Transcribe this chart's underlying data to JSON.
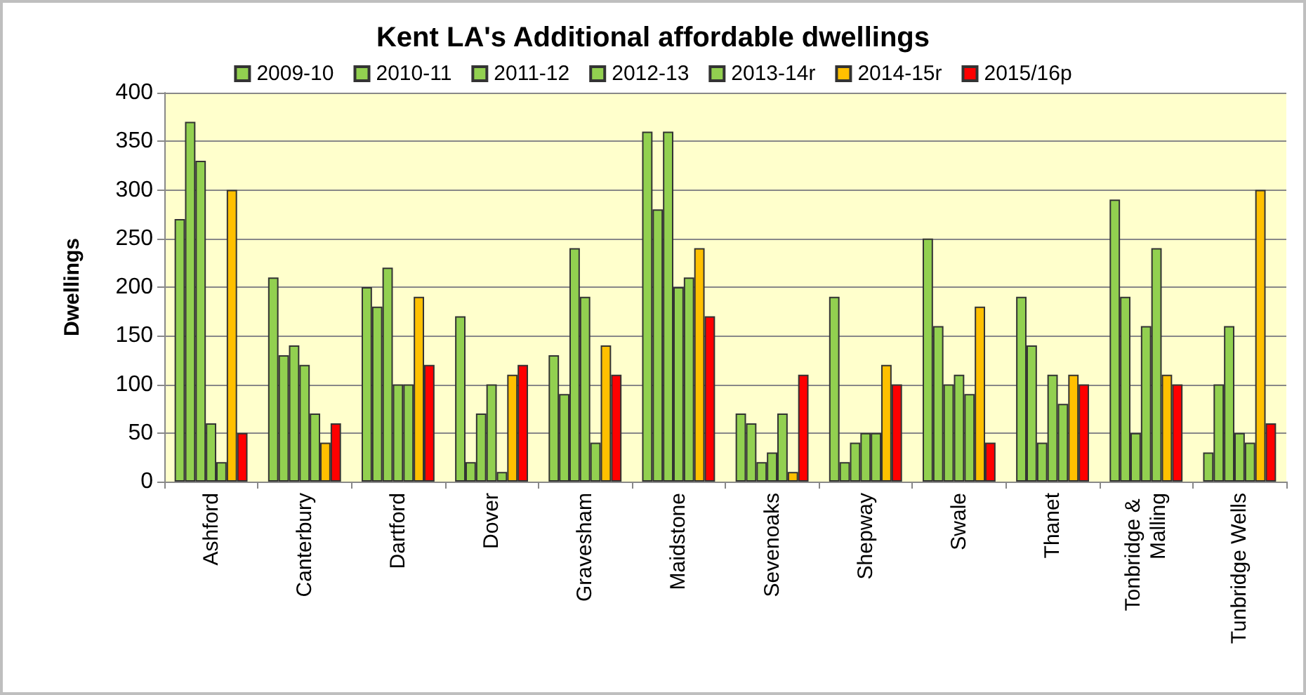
{
  "chart_data": {
    "type": "bar",
    "title": "Kent LA's Additional affordable dwellings",
    "ylabel": "Dwellings",
    "categories": [
      "Ashford",
      "Canterbury",
      "Dartford",
      "Dover",
      "Gravesham",
      "Maidstone",
      "Sevenoaks",
      "Shepway",
      "Swale",
      "Thanet",
      "Tonbridge & Malling",
      "Tunbridge Wells"
    ],
    "series": [
      {
        "name": "2009-10",
        "color": "#92d050",
        "values": [
          270,
          210,
          200,
          170,
          130,
          360,
          70,
          190,
          250,
          190,
          290,
          30
        ]
      },
      {
        "name": "2010-11",
        "color": "#92d050",
        "values": [
          370,
          130,
          180,
          20,
          90,
          280,
          60,
          20,
          160,
          140,
          190,
          100
        ]
      },
      {
        "name": "2011-12",
        "color": "#92d050",
        "values": [
          330,
          140,
          220,
          70,
          240,
          360,
          20,
          40,
          100,
          40,
          50,
          160
        ]
      },
      {
        "name": "2012-13",
        "color": "#92d050",
        "values": [
          60,
          120,
          100,
          100,
          190,
          200,
          30,
          50,
          110,
          110,
          160,
          50
        ]
      },
      {
        "name": "2013-14r",
        "color": "#92d050",
        "values": [
          20,
          70,
          100,
          10,
          40,
          210,
          70,
          50,
          90,
          80,
          240,
          40
        ]
      },
      {
        "name": "2014-15r",
        "color": "#ffc000",
        "values": [
          300,
          40,
          190,
          110,
          140,
          240,
          10,
          120,
          180,
          110,
          110,
          300
        ]
      },
      {
        "name": "2015/16p",
        "color": "#ff0000",
        "values": [
          50,
          60,
          120,
          120,
          110,
          170,
          110,
          100,
          40,
          100,
          100,
          60
        ]
      }
    ],
    "ylim": [
      0,
      400
    ],
    "yticks": [
      0,
      50,
      100,
      150,
      200,
      250,
      300,
      350,
      400
    ],
    "grid": "y",
    "legend": "top"
  }
}
